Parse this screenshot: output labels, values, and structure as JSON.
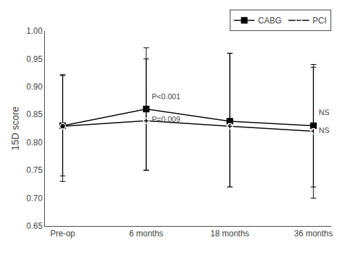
{
  "chart_data": {
    "type": "line",
    "categories": [
      "Pre-op",
      "6 months",
      "18 months",
      "36 months"
    ],
    "ylabel": "15D score",
    "ylim": [
      0.65,
      1.0
    ],
    "yticks": [
      0.65,
      {
        "value": 0.7,
        "label": "0.70"
      },
      0.75,
      {
        "value": 0.8,
        "label": "0.80"
      },
      0.85,
      {
        "value": 0.9,
        "label": "0.90"
      },
      0.95,
      {
        "value": 1,
        "label": "1.00"
      }
    ],
    "grid": false,
    "legend": "upper right",
    "series": [
      {
        "name": "CABG",
        "color": "#000000",
        "marker": "square",
        "values": [
          0.83,
          0.86,
          0.838,
          0.83
        ],
        "error_upper": [
          0.092,
          0.11,
          0.122,
          0.11
        ],
        "error_lower": [
          0.09,
          0.11,
          0.118,
          0.11
        ],
        "annotations": [
          {
            "x": "6 months",
            "y": 0.873,
            "text": "P<0.001"
          },
          {
            "x": "36 months",
            "y": 0.844,
            "text": "NS"
          }
        ]
      },
      {
        "name": "PCI",
        "color": "#000000",
        "marker": "circle-open",
        "values": [
          0.829,
          0.839,
          0.829,
          0.82
        ],
        "error_upper": [
          0.091,
          0.111,
          0.131,
          0.115
        ],
        "error_lower": [
          0.099,
          0.089,
          0.109,
          0.12
        ],
        "annotations": [
          {
            "x": "6 months",
            "y": 0.852,
            "text": "P=0.009"
          },
          {
            "x": "36 months",
            "y": 0.832,
            "text": "NS"
          }
        ]
      }
    ]
  }
}
